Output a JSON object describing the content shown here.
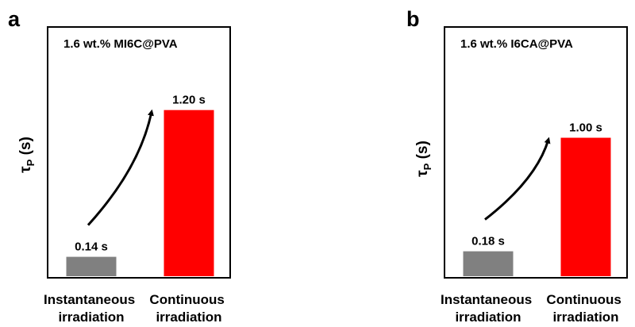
{
  "chart_data": [
    {
      "type": "bar",
      "panel_label": "a",
      "title": "1.6 wt.% MI6C@PVA",
      "ylabel": "τ",
      "ylabel_subscript": "P",
      "ylabel_unit": " (s)",
      "categories": [
        [
          "Instantaneous",
          "irradiation"
        ],
        [
          "Continuous",
          "irradiation"
        ]
      ],
      "values": [
        0.14,
        1.2
      ],
      "value_labels": [
        "0.14 s",
        "1.20 s"
      ],
      "colors": [
        "#808080",
        "#ff0000"
      ],
      "ylim": [
        0,
        1.8
      ],
      "y_ticks": "none",
      "grid": false,
      "annotation": "curved arrow from first bar to second bar"
    },
    {
      "type": "bar",
      "panel_label": "b",
      "title": "1.6 wt.% I6CA@PVA",
      "ylabel": "τ",
      "ylabel_subscript": "P",
      "ylabel_unit": " (s)",
      "categories": [
        [
          "Instantaneous",
          "irradiation"
        ],
        [
          "Continuous",
          "irradiation"
        ]
      ],
      "values": [
        0.18,
        1.0
      ],
      "value_labels": [
        "0.18 s",
        "1.00 s"
      ],
      "colors": [
        "#808080",
        "#ff0000"
      ],
      "ylim": [
        0,
        1.8
      ],
      "y_ticks": "none",
      "grid": false,
      "annotation": "curved arrow from first bar to second bar"
    }
  ]
}
